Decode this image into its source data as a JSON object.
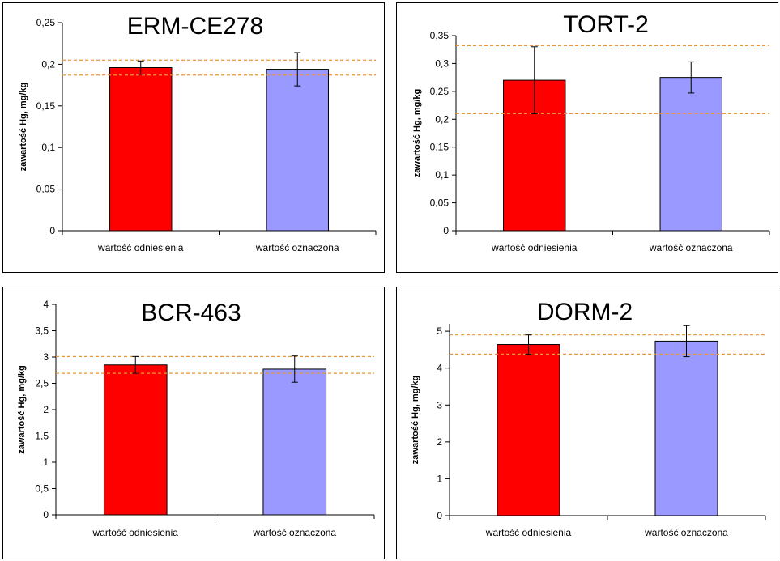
{
  "chart_data": [
    {
      "type": "bar",
      "title": "ERM-CE278",
      "categories": [
        "wartość odniesienia",
        "wartość oznaczona"
      ],
      "values": [
        0.196,
        0.194
      ],
      "errors": [
        0.008,
        0.02
      ],
      "reference_lines": [
        0.205,
        0.187
      ],
      "ylabel": "zawartość Hg, mg/kg",
      "ylim": [
        0,
        0.25
      ],
      "yticks": [
        "0",
        "0,05",
        "0,1",
        "0,15",
        "0,2",
        "0,25"
      ],
      "ytick_values": [
        0,
        0.05,
        0.1,
        0.15,
        0.2,
        0.25
      ],
      "colors": [
        "#ff0000",
        "#9999ff"
      ],
      "reference_line_color": "#e8963c"
    },
    {
      "type": "bar",
      "title": "TORT-2",
      "categories": [
        "wartość odniesienia",
        "wartość oznaczona"
      ],
      "values": [
        0.27,
        0.275
      ],
      "errors": [
        0.06,
        0.028
      ],
      "reference_lines": [
        0.332,
        0.21
      ],
      "ylabel": "zawartość Hg, mg/kg",
      "ylim": [
        0,
        0.35
      ],
      "yticks": [
        "0",
        "0,05",
        "0,1",
        "0,15",
        "0,2",
        "0,25",
        "0,3",
        "0,35"
      ],
      "ytick_values": [
        0,
        0.05,
        0.1,
        0.15,
        0.2,
        0.25,
        0.3,
        0.35
      ],
      "colors": [
        "#ff0000",
        "#9999ff"
      ],
      "reference_line_color": "#e8963c"
    },
    {
      "type": "bar",
      "title": "BCR-463",
      "categories": [
        "wartość odniesienia",
        "wartość oznaczona"
      ],
      "values": [
        2.85,
        2.77
      ],
      "errors": [
        0.16,
        0.25
      ],
      "reference_lines": [
        3.01,
        2.69
      ],
      "ylabel": "zawartość Hg, mg/kg",
      "ylim": [
        0,
        4
      ],
      "yticks": [
        "0",
        "0,5",
        "1",
        "1,5",
        "2",
        "2,5",
        "3",
        "3,5",
        "4"
      ],
      "ytick_values": [
        0,
        0.5,
        1,
        1.5,
        2,
        2.5,
        3,
        3.5,
        4
      ],
      "colors": [
        "#ff0000",
        "#9999ff"
      ],
      "reference_line_color": "#e8963c"
    },
    {
      "type": "bar",
      "title": "DORM-2",
      "categories": [
        "wartość odniesienia",
        "wartość oznaczona"
      ],
      "values": [
        4.64,
        4.73
      ],
      "errors": [
        0.26,
        0.42
      ],
      "reference_lines": [
        4.9,
        4.38
      ],
      "ylabel": "zawartość Hg, mg/kg",
      "ylim": [
        0,
        5.2
      ],
      "yticks": [
        "0",
        "1",
        "2",
        "3",
        "4",
        "5"
      ],
      "ytick_values": [
        0,
        1,
        2,
        3,
        4,
        5
      ],
      "colors": [
        "#ff0000",
        "#9999ff"
      ],
      "reference_line_color": "#e8963c"
    }
  ]
}
